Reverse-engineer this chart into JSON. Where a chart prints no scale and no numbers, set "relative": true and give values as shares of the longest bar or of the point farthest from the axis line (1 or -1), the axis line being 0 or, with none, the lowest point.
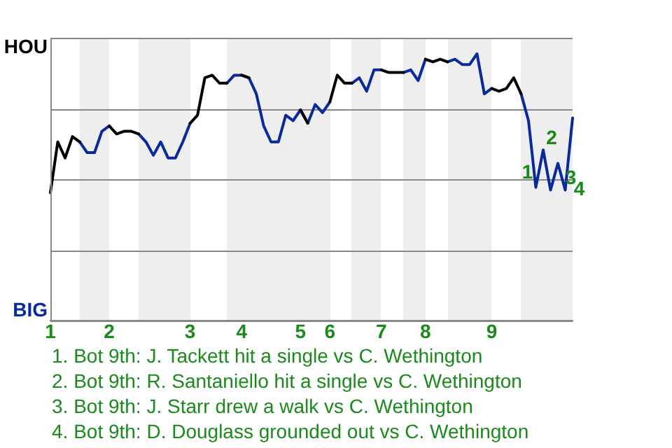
{
  "chart_data": {
    "type": "line",
    "relative": true,
    "categories": [
      "1",
      null,
      null,
      null,
      null,
      null,
      null,
      null,
      "2",
      null,
      null,
      null,
      null,
      null,
      null,
      null,
      null,
      null,
      null,
      "3",
      null,
      null,
      null,
      null,
      null,
      null,
      "4",
      null,
      null,
      null,
      null,
      null,
      null,
      null,
      "5",
      null,
      null,
      null,
      "6",
      null,
      null,
      null,
      null,
      null,
      null,
      "7",
      null,
      null,
      null,
      null,
      null,
      "8",
      null,
      null,
      null,
      null,
      null,
      null,
      null,
      null,
      "9",
      null,
      null,
      null,
      null,
      null,
      null,
      null,
      null,
      null,
      null,
      null
    ],
    "series": [
      {
        "color": "#000000",
        "values": [
          0.48,
          0.67,
          0.61,
          0.69,
          0.67,
          null,
          null,
          null,
          0.73,
          0.7,
          0.71,
          0.71,
          0.7,
          null,
          null,
          null,
          null,
          null,
          null,
          0.74,
          0.77,
          0.91,
          0.92,
          0.89,
          0.89,
          null,
          0.92,
          0.91,
          null,
          null,
          null,
          null,
          null,
          null,
          0.79,
          0.74,
          null,
          null,
          0.82,
          0.92,
          0.89,
          0.89,
          null,
          null,
          null,
          0.94,
          0.93,
          0.93,
          0.93,
          null,
          null,
          0.98,
          0.97,
          0.98,
          0.97,
          null,
          null,
          null,
          null,
          null,
          0.87,
          0.86,
          0.87,
          0.91,
          0.85,
          null,
          null,
          null,
          null,
          null,
          null,
          null
        ]
      },
      {
        "color": "#0a2a9c",
        "values": [
          null,
          null,
          null,
          null,
          0.67,
          0.63,
          0.63,
          0.71,
          0.73,
          null,
          null,
          null,
          0.7,
          0.67,
          0.62,
          0.67,
          0.61,
          0.61,
          0.67,
          0.74,
          null,
          null,
          null,
          null,
          0.89,
          0.92,
          0.92,
          0.91,
          0.85,
          0.73,
          0.67,
          0.67,
          0.77,
          0.75,
          0.79,
          0.74,
          0.81,
          0.78,
          0.82,
          null,
          null,
          0.89,
          0.91,
          0.86,
          0.94,
          0.94,
          null,
          null,
          0.93,
          0.94,
          0.9,
          0.98,
          null,
          null,
          0.97,
          0.98,
          0.96,
          0.96,
          1,
          0.85,
          0.87,
          null,
          null,
          null,
          0.85,
          0.75,
          0.5,
          0.64,
          0.49,
          0.59,
          0.49,
          0.76
        ]
      }
    ],
    "grid": "y",
    "legend": false,
    "marker": "none",
    "line_style": "solid",
    "annotations": [
      "HOU",
      "BIG",
      "1",
      "2",
      "3",
      "4",
      "1. Bot 9th: J. Tackett hit a single vs C. Wethington",
      "2. Bot 9th: R. Santaniello hit a single vs C. Wethington",
      "3. Bot 9th: J. Starr drew a walk vs C. Wethington",
      "4. Bot 9th: D. Douglass grounded out vs C. Wethington"
    ]
  }
}
